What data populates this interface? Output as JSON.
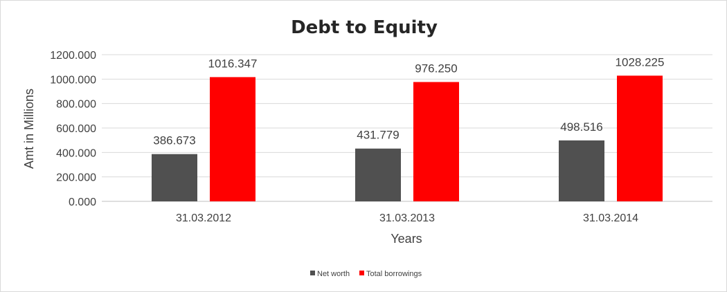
{
  "chart_data": {
    "type": "bar",
    "title": "Debt to Equity",
    "xlabel": "Years",
    "ylabel": "Amt in Millions",
    "categories": [
      "31.03.2012",
      "31.03.2013",
      "31.03.2014"
    ],
    "series": [
      {
        "name": "Net worth",
        "color": "#505050",
        "values": [
          386.673,
          431.779,
          498.516
        ],
        "labels": [
          "386.673",
          "431.779",
          "498.516"
        ]
      },
      {
        "name": "Total borrowings",
        "color": "#ff0000",
        "values": [
          1016.347,
          976.25,
          1028.225
        ],
        "labels": [
          "1016.347",
          "976.250",
          "1028.225"
        ]
      }
    ],
    "ylim": [
      0,
      1200
    ],
    "yticks": [
      "0.000",
      "200.000",
      "400.000",
      "600.000",
      "800.000",
      "1000.000",
      "1200.000"
    ],
    "grid": true,
    "legend_position": "bottom"
  }
}
